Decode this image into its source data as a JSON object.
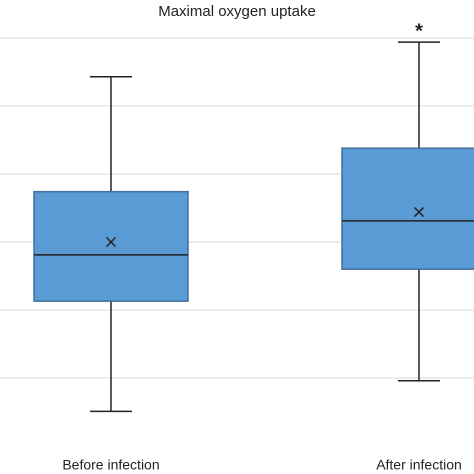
{
  "chart_data": {
    "type": "box",
    "title": "Maximal oxygen uptake",
    "categories": [
      "Before infection",
      "After infection"
    ],
    "boxes": [
      {
        "min": 0.51,
        "q1": 2.13,
        "median": 2.81,
        "q3": 3.74,
        "max": 5.43,
        "mean": 3.0
      },
      {
        "min": 0.96,
        "q1": 2.6,
        "median": 3.31,
        "q3": 4.38,
        "max": 5.94,
        "mean": 3.44
      }
    ],
    "annotations": [
      {
        "category": 1,
        "text": "*"
      }
    ],
    "color": "#5b9bd5",
    "edge_color": "#41719c",
    "ylim": [
      0,
      6.5
    ],
    "gridlines": [
      1,
      2,
      3,
      4,
      5,
      6
    ],
    "grid": true
  }
}
